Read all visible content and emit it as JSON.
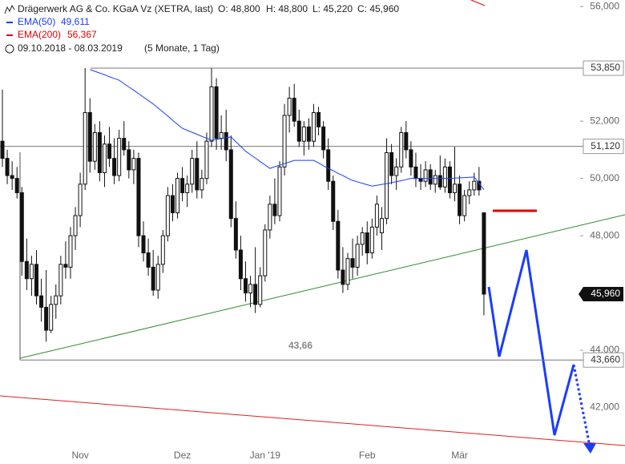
{
  "chart_data": {
    "type": "candlestick",
    "title": "Drägerwerk AG & Co. KGaA Vz (XETRA, last)",
    "stats": [
      "O: 48,800",
      "H: 48,800",
      "L: 45,220",
      "C: 45,960"
    ],
    "period": "09.10.2018 - 08.03.2019",
    "period_note": "(5 Monate, 1 Tag)",
    "legend": [
      {
        "name": "EMA(50)",
        "color": "#1a3cff",
        "label": "49,611"
      },
      {
        "name": "EMA(200)",
        "color": "#e00000",
        "label": "56,367"
      }
    ],
    "categories": [
      null,
      null,
      null,
      null,
      null,
      null,
      null,
      null,
      null,
      null,
      null,
      null,
      null,
      null,
      null,
      null,
      "Nov",
      null,
      null,
      null,
      null,
      null,
      null,
      null,
      null,
      null,
      null,
      null,
      null,
      null,
      null,
      null,
      null,
      null,
      null,
      null,
      null,
      "Dez",
      null,
      null,
      null,
      null,
      null,
      null,
      null,
      null,
      null,
      null,
      null,
      null,
      null,
      null,
      null,
      null,
      "Jan '19",
      null,
      null,
      null,
      null,
      null,
      null,
      null,
      null,
      null,
      null,
      null,
      null,
      null,
      null,
      null,
      null,
      null,
      null,
      null,
      null,
      "Feb",
      null,
      null,
      null,
      null,
      null,
      null,
      null,
      null,
      null,
      null,
      null,
      null,
      null,
      null,
      null,
      null,
      null,
      null,
      "Mär",
      null,
      null,
      null,
      null,
      null
    ],
    "open": [
      51300,
      50700,
      50100,
      50000,
      49500,
      47100,
      46500,
      47000,
      45900,
      45500,
      44700,
      45600,
      45900,
      47000,
      46900,
      48000,
      48700,
      49800,
      52300,
      50600,
      51600,
      50200,
      51200,
      50700,
      50100,
      51400,
      51000,
      50300,
      50700,
      48000,
      47400,
      46900,
      46100,
      47000,
      48000,
      49400,
      48800,
      50000,
      49500,
      49800,
      50700,
      49600,
      50000,
      51300,
      53200,
      51400,
      51600,
      51000,
      48600,
      47500,
      46500,
      46000,
      46300,
      45600,
      46600,
      48200,
      49100,
      48700,
      50400,
      52200,
      52800,
      52000,
      51300,
      51800,
      51300,
      52300,
      51800,
      51000,
      49900,
      48500,
      46800,
      46300,
      47200,
      46900,
      47700,
      48100,
      47400,
      48300,
      48100,
      48600,
      50900,
      50100,
      50400,
      51600,
      51000,
      50400,
      50000,
      49900,
      50300,
      49800,
      50100,
      49700,
      50400,
      49500,
      49800,
      48700,
      49400,
      49600,
      49900,
      48800
    ],
    "high": [
      53100,
      51000,
      50600,
      50400,
      49700,
      47900,
      47300,
      47500,
      46500,
      46800,
      45900,
      46300,
      47300,
      47800,
      48300,
      49000,
      50200,
      53850,
      52800,
      51900,
      52000,
      51500,
      51800,
      51400,
      51700,
      52000,
      51300,
      51000,
      50900,
      48500,
      47900,
      47500,
      47300,
      48200,
      49700,
      49800,
      50200,
      50400,
      50100,
      51000,
      51300,
      50300,
      51600,
      53850,
      53500,
      52200,
      52400,
      51500,
      49200,
      48000,
      47100,
      46600,
      47600,
      46900,
      48400,
      49400,
      50000,
      50600,
      52600,
      53200,
      53300,
      52400,
      52000,
      52100,
      52600,
      52500,
      52000,
      51400,
      50100,
      48900,
      47600,
      47400,
      47900,
      48000,
      48300,
      48500,
      48600,
      49400,
      49000,
      51400,
      51200,
      50700,
      51800,
      52000,
      51300,
      50900,
      50500,
      50600,
      50500,
      50300,
      50800,
      50700,
      50600,
      51100,
      50100,
      49600,
      49900,
      50200,
      50400,
      48800
    ],
    "low": [
      50400,
      49800,
      49600,
      49300,
      46600,
      46100,
      45900,
      45600,
      45000,
      44300,
      44600,
      45100,
      45600,
      46500,
      46500,
      47500,
      48300,
      49600,
      50200,
      50300,
      49900,
      49700,
      50400,
      49800,
      49900,
      50800,
      50000,
      49800,
      47600,
      47100,
      46600,
      45900,
      45800,
      46700,
      47800,
      48500,
      48600,
      49200,
      49000,
      49500,
      49300,
      49300,
      49800,
      51100,
      51000,
      51000,
      50600,
      48300,
      47200,
      46100,
      45700,
      45500,
      45300,
      45500,
      46400,
      47900,
      48400,
      48500,
      50100,
      51600,
      51800,
      51100,
      50800,
      51000,
      51100,
      51500,
      50700,
      49600,
      48200,
      46500,
      46000,
      46100,
      46500,
      46600,
      47300,
      47000,
      47200,
      48000,
      47500,
      48400,
      49800,
      49600,
      50200,
      50700,
      50100,
      49700,
      49600,
      49700,
      49600,
      49500,
      49600,
      49500,
      49300,
      49200,
      48400,
      48500,
      49100,
      49400,
      49400,
      45220
    ],
    "close": [
      50700,
      50100,
      50000,
      49500,
      47100,
      46500,
      47000,
      45900,
      45500,
      44700,
      45600,
      45900,
      47000,
      46900,
      48000,
      48700,
      49800,
      52300,
      50600,
      51600,
      50200,
      51200,
      50700,
      50100,
      51400,
      51000,
      50300,
      50700,
      48000,
      47400,
      46900,
      46100,
      47000,
      48000,
      49400,
      48800,
      50000,
      49500,
      49800,
      50700,
      49600,
      50000,
      51300,
      53200,
      51400,
      51600,
      51000,
      48600,
      47500,
      46500,
      46000,
      46300,
      45600,
      46600,
      48200,
      49100,
      48700,
      50400,
      52200,
      52800,
      52000,
      51300,
      51800,
      51300,
      52300,
      51800,
      51000,
      49900,
      48500,
      46800,
      46300,
      47200,
      46900,
      47700,
      48100,
      47400,
      48300,
      49100,
      48600,
      50900,
      50100,
      50400,
      51600,
      51000,
      50400,
      50000,
      49900,
      50300,
      49800,
      50100,
      49700,
      50400,
      49500,
      49800,
      48700,
      49400,
      49600,
      49900,
      49600,
      45960
    ],
    "ema50": [
      null,
      null,
      null,
      null,
      null,
      null,
      null,
      null,
      null,
      null,
      null,
      null,
      null,
      null,
      null,
      null,
      null,
      null,
      53800,
      53740,
      53680,
      53620,
      53550,
      53490,
      53430,
      53310,
      53190,
      53080,
      52960,
      52840,
      52720,
      52600,
      52460,
      52320,
      52180,
      52030,
      51890,
      51750,
      51680,
      51610,
      51540,
      51470,
      51400,
      51330,
      51360,
      51390,
      51420,
      51450,
      51280,
      51120,
      50950,
      50830,
      50710,
      50590,
      50470,
      50350,
      50410,
      50460,
      50520,
      50570,
      50630,
      50630,
      50630,
      50630,
      50630,
      50540,
      50440,
      50350,
      50270,
      50180,
      50100,
      50010,
      49930,
      49880,
      49830,
      49780,
      49730,
      49760,
      49790,
      49820,
      49850,
      49890,
      49920,
      49960,
      50000,
      50000,
      50000,
      50000,
      50000,
      50000,
      50000,
      50000,
      50000,
      50010,
      50020,
      50030,
      50040,
      50050,
      49830,
      49611
    ],
    "ylim": [
      40700,
      56230
    ],
    "yticks": [
      {
        "value": 42000,
        "label": "42,000"
      },
      {
        "value": 44000,
        "label": "44,000"
      },
      {
        "value": 48000,
        "label": "48,000"
      },
      {
        "value": 50000,
        "label": "50,000"
      },
      {
        "value": 52000,
        "label": "52,000"
      },
      {
        "value": 56000,
        "label": "56,000"
      }
    ],
    "levels": [
      {
        "value": 53850,
        "label": "53,850"
      },
      {
        "value": 51120,
        "label": "51,120"
      },
      {
        "value": 43660,
        "label": "43,660"
      }
    ],
    "last_price": {
      "value": 45960,
      "label": "45,960"
    },
    "annotation": "43,66"
  }
}
